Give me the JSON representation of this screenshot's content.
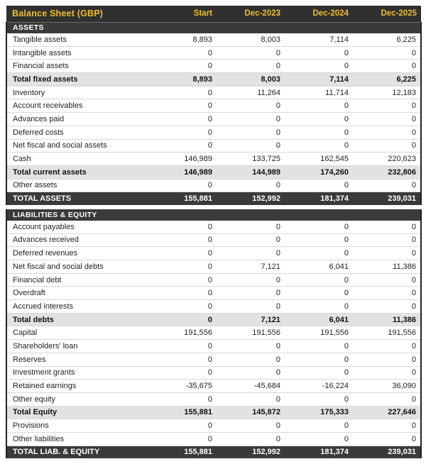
{
  "colors": {
    "accent_yellow": "#f1be25",
    "dark_row": "#3a3a3a",
    "header_bg": "#303030",
    "total_row_bg": "#e2e2e2"
  },
  "table": {
    "title": "Balance Sheet (GBP)",
    "columns": [
      "Start",
      "Dec-2023",
      "Dec-2024",
      "Dec-2025"
    ],
    "sections": [
      {
        "header": "ASSETS",
        "rows": [
          {
            "label": "Tangible assets",
            "type": "data",
            "values": [
              "8,893",
              "8,003",
              "7,114",
              "6,225"
            ]
          },
          {
            "label": "Intangible assets",
            "type": "data",
            "values": [
              "0",
              "0",
              "0",
              "0"
            ]
          },
          {
            "label": "Financial assets",
            "type": "data",
            "values": [
              "0",
              "0",
              "0",
              "0"
            ]
          },
          {
            "label": "Total fixed assets",
            "type": "total",
            "values": [
              "8,893",
              "8,003",
              "7,114",
              "6,225"
            ]
          },
          {
            "label": "Inventory",
            "type": "data",
            "values": [
              "0",
              "11,264",
              "11,714",
              "12,183"
            ]
          },
          {
            "label": "Account receivables",
            "type": "data",
            "values": [
              "0",
              "0",
              "0",
              "0"
            ]
          },
          {
            "label": "Advances paid",
            "type": "data",
            "values": [
              "0",
              "0",
              "0",
              "0"
            ]
          },
          {
            "label": "Deferred costs",
            "type": "data",
            "values": [
              "0",
              "0",
              "0",
              "0"
            ]
          },
          {
            "label": "Net fiscal and social assets",
            "type": "data",
            "values": [
              "0",
              "0",
              "0",
              "0"
            ]
          },
          {
            "label": "Cash",
            "type": "data",
            "values": [
              "146,989",
              "133,725",
              "162,545",
              "220,623"
            ]
          },
          {
            "label": "Total current assets",
            "type": "total",
            "values": [
              "146,989",
              "144,989",
              "174,260",
              "232,806"
            ]
          },
          {
            "label": "Other assets",
            "type": "data",
            "values": [
              "0",
              "0",
              "0",
              "0"
            ]
          },
          {
            "label": "TOTAL ASSETS",
            "type": "grand",
            "values": [
              "155,881",
              "152,992",
              "181,374",
              "239,031"
            ]
          }
        ]
      },
      {
        "header": "LIABILITIES & EQUITY",
        "rows": [
          {
            "label": "Account payables",
            "type": "data",
            "values": [
              "0",
              "0",
              "0",
              "0"
            ]
          },
          {
            "label": "Advances received",
            "type": "data",
            "values": [
              "0",
              "0",
              "0",
              "0"
            ]
          },
          {
            "label": "Deferred revenues",
            "type": "data",
            "values": [
              "0",
              "0",
              "0",
              "0"
            ]
          },
          {
            "label": "Net fiscal and social debts",
            "type": "data",
            "values": [
              "0",
              "7,121",
              "6,041",
              "11,386"
            ]
          },
          {
            "label": "Financial debt",
            "type": "data",
            "values": [
              "0",
              "0",
              "0",
              "0"
            ]
          },
          {
            "label": "Overdraft",
            "type": "data",
            "values": [
              "0",
              "0",
              "0",
              "0"
            ]
          },
          {
            "label": "Accrued interests",
            "type": "data",
            "values": [
              "0",
              "0",
              "0",
              "0"
            ]
          },
          {
            "label": "Total debts",
            "type": "total",
            "values": [
              "0",
              "7,121",
              "6,041",
              "11,386"
            ]
          },
          {
            "label": "Capital",
            "type": "data",
            "values": [
              "191,556",
              "191,556",
              "191,556",
              "191,556"
            ]
          },
          {
            "label": "Shareholders' loan",
            "type": "data",
            "values": [
              "0",
              "0",
              "0",
              "0"
            ]
          },
          {
            "label": "Reserves",
            "type": "data",
            "values": [
              "0",
              "0",
              "0",
              "0"
            ]
          },
          {
            "label": "Investment grants",
            "type": "data",
            "values": [
              "0",
              "0",
              "0",
              "0"
            ]
          },
          {
            "label": "Retained earnings",
            "type": "data",
            "values": [
              "-35,675",
              "-45,684",
              "-16,224",
              "36,090"
            ]
          },
          {
            "label": "Other equity",
            "type": "data",
            "values": [
              "0",
              "0",
              "0",
              "0"
            ]
          },
          {
            "label": "Total Equity",
            "type": "total",
            "values": [
              "155,881",
              "145,872",
              "175,333",
              "227,646"
            ]
          },
          {
            "label": "Provisions",
            "type": "data",
            "values": [
              "0",
              "0",
              "0",
              "0"
            ]
          },
          {
            "label": "Other liabilities",
            "type": "data",
            "values": [
              "0",
              "0",
              "0",
              "0"
            ]
          },
          {
            "label": "TOTAL LIAB. & EQUITY",
            "type": "grand",
            "values": [
              "155,881",
              "152,992",
              "181,374",
              "239,031"
            ]
          }
        ]
      }
    ]
  }
}
